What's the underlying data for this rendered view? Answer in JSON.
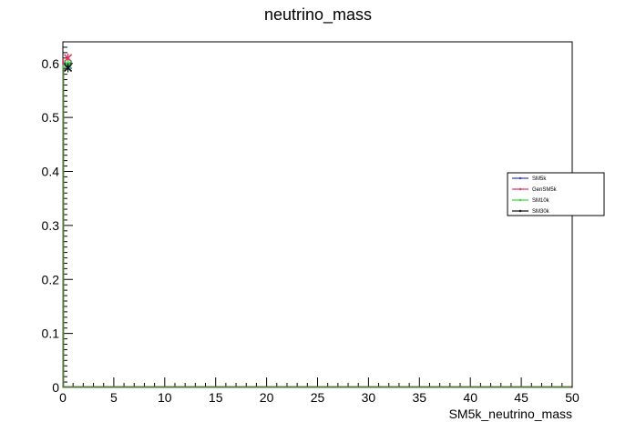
{
  "chart_data": {
    "type": "line",
    "title": "neutrino_mass",
    "xlabel": "SM5k_neutrino_mass",
    "ylabel": "",
    "xlim": [
      0,
      50
    ],
    "ylim": [
      0,
      0.64
    ],
    "xticks": [
      0,
      5,
      10,
      15,
      20,
      25,
      30,
      35,
      40,
      45,
      50
    ],
    "xtick_labels": [
      "0",
      "5",
      "10",
      "15",
      "20",
      "25",
      "30",
      "35",
      "40",
      "45",
      "50"
    ],
    "yticks": [
      0,
      0.1,
      0.2,
      0.3,
      0.4,
      0.5,
      0.6
    ],
    "ytick_labels": [
      "0",
      "0.1",
      "0.2",
      "0.3",
      "0.4",
      "0.5",
      "0.6"
    ],
    "grid": false,
    "legend_position": "right",
    "series": [
      {
        "name": "SM5k",
        "color": "#3b3bd6",
        "x": [
          0.5
        ],
        "y": [
          0.597
        ]
      },
      {
        "name": "GenSM5k",
        "color": "#e8335f",
        "x": [
          0.5
        ],
        "y": [
          0.61
        ]
      },
      {
        "name": "SM10k",
        "color": "#33dd33",
        "x": [
          0.5
        ],
        "y": [
          0.598
        ]
      },
      {
        "name": "SM30k",
        "color": "#111111",
        "x": [
          0.5
        ],
        "y": [
          0.592
        ]
      }
    ]
  }
}
